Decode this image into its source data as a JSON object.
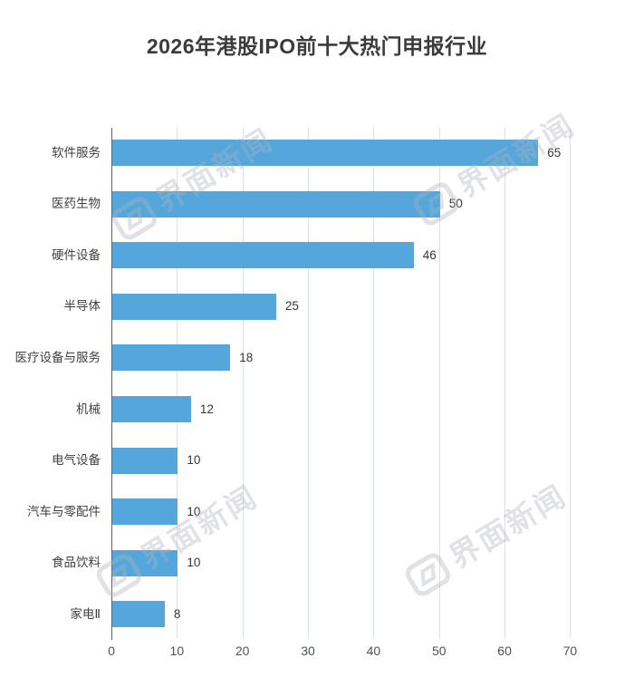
{
  "title": "2026年港股IPO前十大热门申报行业",
  "watermark": {
    "brand": "界面新闻"
  },
  "chart_data": {
    "type": "bar",
    "orientation": "horizontal",
    "title": "2026年港股IPO前十大热门申报行业",
    "categories": [
      "软件服务",
      "医药生物",
      "硬件设备",
      "半导体",
      "医疗设备与服务",
      "机械",
      "电气设备",
      "汽车与零配件",
      "食品饮料",
      "家电Ⅱ"
    ],
    "values": [
      65,
      50,
      46,
      25,
      18,
      12,
      10,
      10,
      10,
      8
    ],
    "xlabel": "",
    "ylabel": "",
    "xlim": [
      0,
      70
    ],
    "x_ticks": [
      0,
      10,
      20,
      30,
      40,
      50,
      60,
      70
    ],
    "grid": true,
    "legend": "none",
    "bar_color": "#55a7db",
    "value_labels_shown": true
  }
}
